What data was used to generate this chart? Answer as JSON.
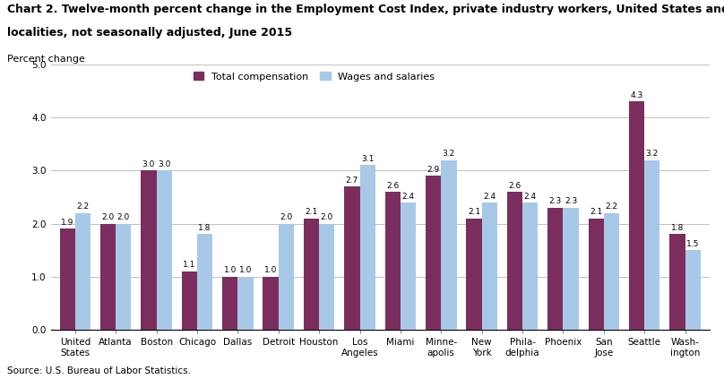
{
  "title_line1": "Chart 2. Twelve-month percent change in the Employment Cost Index, private industry workers, United States and",
  "title_line2": "localities, not seasonally adjusted, June 2015",
  "ylabel": "Percent change",
  "source": "Source: U.S. Bureau of Labor Statistics.",
  "ylim": [
    0.0,
    5.0
  ],
  "yticks": [
    0.0,
    1.0,
    2.0,
    3.0,
    4.0,
    5.0
  ],
  "ytick_labels": [
    "0.0",
    "1.0",
    "2.0",
    "3.0",
    "4.0",
    "5.0"
  ],
  "categories": [
    "United\nStates",
    "Atlanta",
    "Boston",
    "Chicago",
    "Dallas",
    "Detroit",
    "Houston",
    "Los\nAngeles",
    "Miami",
    "Minne-\napolis",
    "New\nYork",
    "Phila-\ndelphia",
    "Phoenix",
    "San\nJose",
    "Seattle",
    "Wash-\nington"
  ],
  "total_compensation": [
    1.9,
    2.0,
    3.0,
    1.1,
    1.0,
    1.0,
    2.1,
    2.7,
    2.6,
    2.9,
    2.1,
    2.6,
    2.3,
    2.1,
    4.3,
    1.8
  ],
  "wages_and_salaries": [
    2.2,
    2.0,
    3.0,
    1.8,
    1.0,
    2.0,
    2.0,
    3.1,
    2.4,
    3.2,
    2.4,
    2.4,
    2.3,
    2.2,
    3.2,
    1.5
  ],
  "color_total": "#7B2D5E",
  "color_wages": "#A8C8E8",
  "bar_width": 0.38,
  "legend_labels": [
    "Total compensation",
    "Wages and salaries"
  ],
  "title_fontsize": 9.0,
  "tick_fontsize": 7.5,
  "label_fontsize": 8,
  "value_fontsize": 6.5
}
